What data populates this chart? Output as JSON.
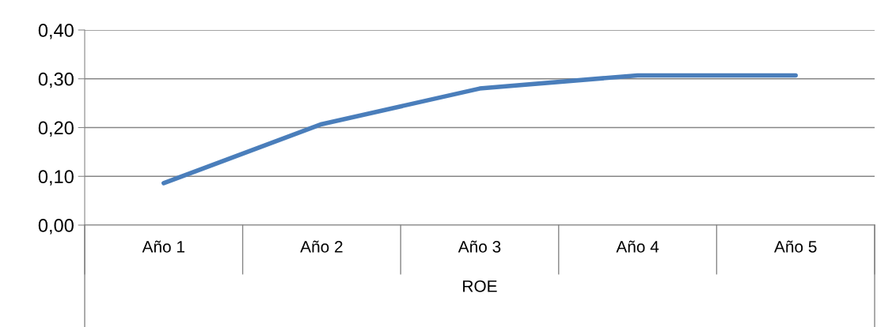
{
  "chart_data": {
    "type": "line",
    "xlabel": "ROE",
    "categories": [
      "Año 1",
      "Año 2",
      "Año 3",
      "Año 4",
      "Año 5"
    ],
    "series": [
      {
        "color": "#4a7ebb",
        "values": [
          0.086,
          0.207,
          0.28,
          0.307,
          0.307
        ]
      }
    ],
    "ylim": [
      0,
      0.4
    ],
    "yticks": [
      {
        "value": 0,
        "label": "0,00"
      },
      {
        "value": 0.1,
        "label": "0,10"
      },
      {
        "value": 0.2,
        "label": "0,20"
      },
      {
        "value": 0.3,
        "label": "0,30"
      },
      {
        "value": 0.4,
        "label": "0,40"
      }
    ],
    "grid": "y",
    "marker": "none",
    "line_style": "solid"
  }
}
